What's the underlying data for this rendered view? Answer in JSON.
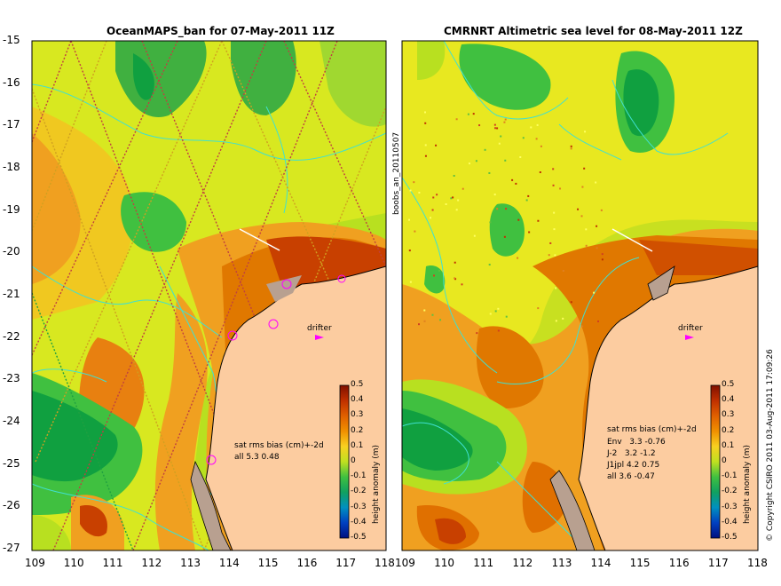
{
  "left_panel": {
    "title": "OceanMAPS_ban for 07-May-2011 11Z",
    "stats_header": "sat rms bias (cm)+-2d",
    "stats_rows": [
      "all 5.3 0.48"
    ]
  },
  "right_panel": {
    "title": "CMRNRT Altimetric sea level  for 08-May-2011 12Z",
    "stats_header": "sat rms bias (cm)+-2d",
    "stats_rows": [
      "Env   3.3 -0.76",
      "J-2   3.2 -1.2",
      "J1jpl 4.2 0.75",
      "all 3.6 -0.47"
    ]
  },
  "axes": {
    "lat_ticks": [
      "-15",
      "-16",
      "-17",
      "-18",
      "-19",
      "-20",
      "-21",
      "-22",
      "-23",
      "-24",
      "-25",
      "-26",
      "-27"
    ],
    "lon_ticks": [
      "109",
      "110",
      "111",
      "112",
      "113",
      "114",
      "115",
      "116",
      "117",
      "118"
    ]
  },
  "colorbar": {
    "label": "height anomaly (m)",
    "ticks": [
      "0.5",
      "0.4",
      "0.3",
      "0.2",
      "0.1",
      "0",
      "-0.1",
      "-0.2",
      "-0.3",
      "-0.4",
      "-0.5"
    ]
  },
  "drifter_label": "drifter",
  "side_label": "boobs_an_20110507",
  "copyright": "© Copyright CSIRO 2011   03-Aug-2011 17:09:26",
  "colors": {
    "land": "#fccca0",
    "coast": "#000000",
    "contour": "#40e0d0",
    "green_dark": "#10a040",
    "green": "#40c040",
    "green_light": "#a0e020",
    "yellow": "#e8f020",
    "yellow_orange": "#f8c020",
    "orange": "#f0a020",
    "dark_orange": "#e07000",
    "red": "#c03000",
    "drifter": "#ff00ff"
  }
}
